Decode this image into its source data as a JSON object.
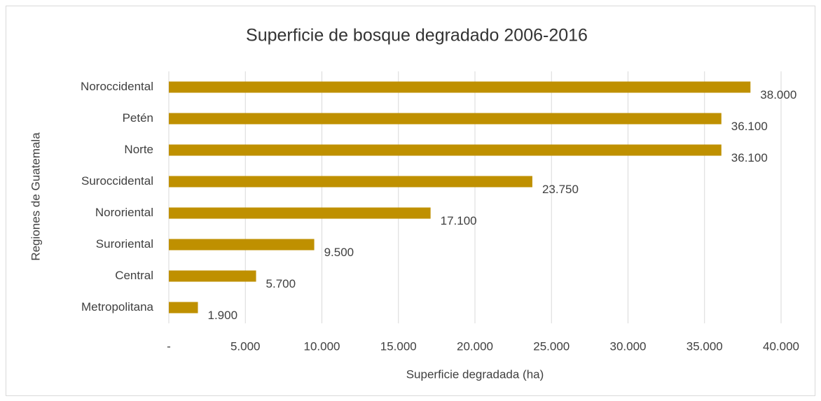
{
  "chart_data": {
    "type": "bar",
    "orientation": "horizontal",
    "title": "Superficie de bosque degradado 2006-2016",
    "xlabel": "Superficie degradada (ha)",
    "ylabel": "Regiones de Guatemala",
    "categories": [
      "Noroccidental",
      "Petén",
      "Norte",
      "Suroccidental",
      "Nororiental",
      "Suroriental",
      "Central",
      "Metropolitana"
    ],
    "values": [
      38000,
      36100,
      36100,
      23750,
      17100,
      9500,
      5700,
      1900
    ],
    "value_labels": [
      "38.000",
      "36.100",
      "36.100",
      "23.750",
      "17.100",
      "9.500",
      "5.700",
      "1.900"
    ],
    "color": "#bf9000",
    "xlim": [
      0,
      40000
    ],
    "xticks": [
      {
        "value": 0,
        "label": "-"
      },
      {
        "value": 5000,
        "label": "5.000"
      },
      {
        "value": 10000,
        "label": "10.000"
      },
      {
        "value": 15000,
        "label": "15.000"
      },
      {
        "value": 20000,
        "label": "20.000"
      },
      {
        "value": 25000,
        "label": "25.000"
      },
      {
        "value": 30000,
        "label": "30.000"
      },
      {
        "value": 35000,
        "label": "35.000"
      },
      {
        "value": 40000,
        "label": "40.000"
      }
    ],
    "grid": true
  }
}
